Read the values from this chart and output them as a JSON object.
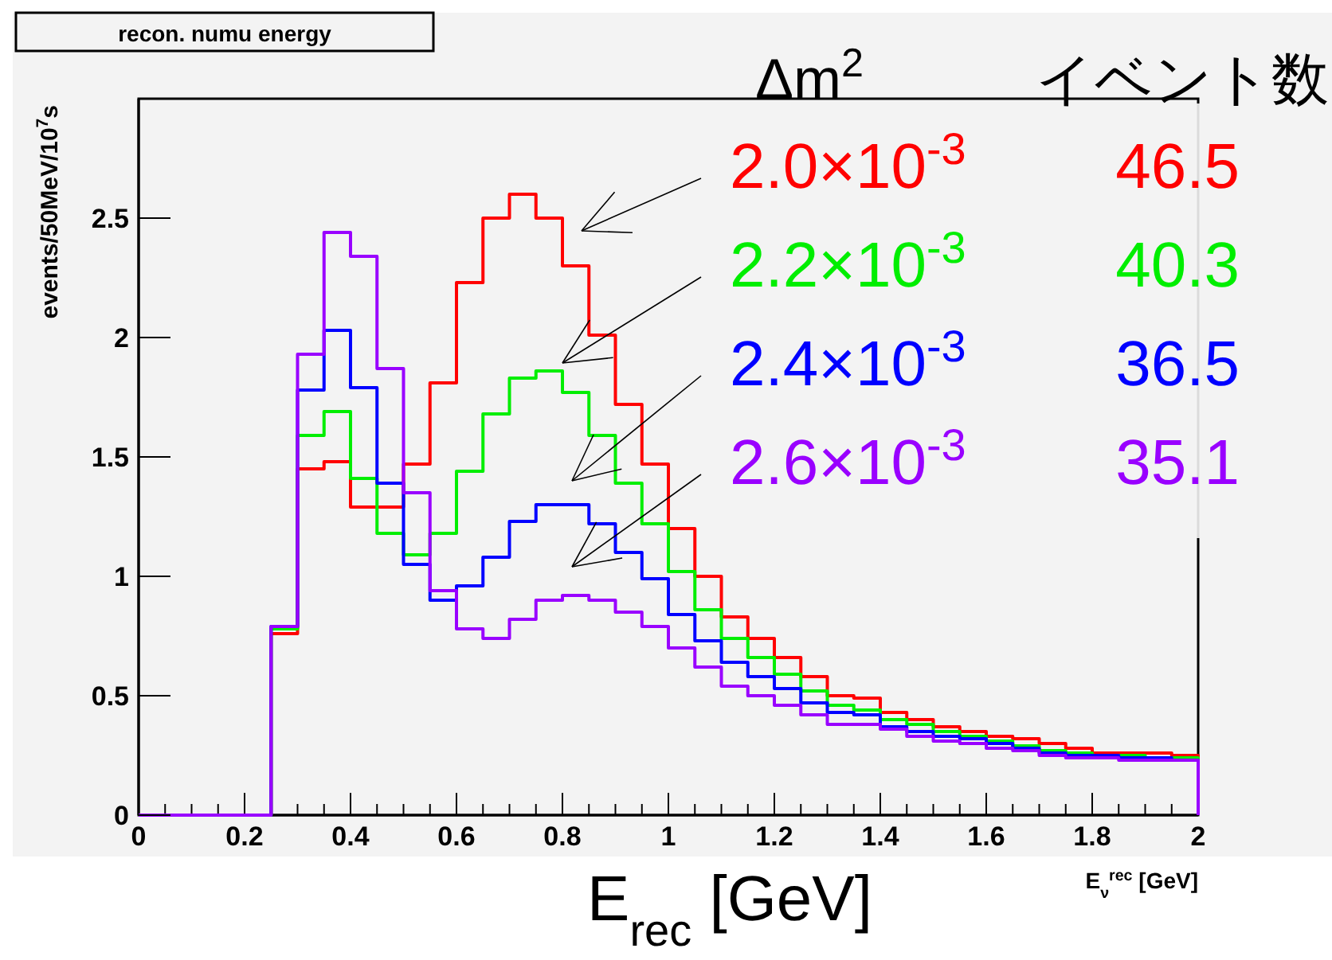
{
  "chart_data": {
    "type": "histogram",
    "title": "recon. numu energy",
    "xlabel": "E$_{ν}$$^{rec}$ [GeV]",
    "ylabel": "events/50MeV/10$^{7}$s",
    "legend_title": "Δm$^{2}$",
    "legend": "top right",
    "annotations": [
      "イベント数",
      "46.5",
      "40.3",
      "36.5",
      "35.1",
      "E$_{rec}$ [GeV]"
    ],
    "bins": [
      0,
      0.05,
      0.1,
      0.15,
      0.2,
      0.25,
      0.3,
      0.35,
      0.4,
      0.45,
      0.5,
      0.55,
      0.6,
      0.65,
      0.7,
      0.75,
      0.8,
      0.85,
      0.9,
      0.95,
      1,
      1.05,
      1.1,
      1.15,
      1.2,
      1.25,
      1.3,
      1.35,
      1.4,
      1.45,
      1.5,
      1.55,
      1.6,
      1.65,
      1.7,
      1.75,
      1.8,
      1.85,
      1.9,
      1.95,
      2
    ],
    "xlim": [
      0,
      2
    ],
    "xticks": [
      0,
      {
        "value": 0.05,
        "label": null
      },
      {
        "value": 0.1,
        "label": null
      },
      {
        "value": 0.15,
        "label": null
      },
      0.2,
      {
        "value": 0.25,
        "label": null
      },
      {
        "value": 0.3,
        "label": null
      },
      {
        "value": 0.35,
        "label": null
      },
      0.4,
      {
        "value": 0.45,
        "label": null
      },
      {
        "value": 0.5,
        "label": null
      },
      {
        "value": 0.55,
        "label": null
      },
      0.6,
      {
        "value": 0.65,
        "label": null
      },
      {
        "value": 0.7,
        "label": null
      },
      {
        "value": 0.75,
        "label": null
      },
      0.8,
      {
        "value": 0.85,
        "label": null
      },
      {
        "value": 0.9,
        "label": null
      },
      {
        "value": 0.95,
        "label": null
      },
      1,
      {
        "value": 1.05,
        "label": null
      },
      {
        "value": 1.1,
        "label": null
      },
      {
        "value": 1.15,
        "label": null
      },
      1.2,
      {
        "value": 1.25,
        "label": null
      },
      {
        "value": 1.3,
        "label": null
      },
      {
        "value": 1.35,
        "label": null
      },
      1.4,
      {
        "value": 1.45,
        "label": null
      },
      {
        "value": 1.5,
        "label": null
      },
      {
        "value": 1.55,
        "label": null
      },
      1.6,
      {
        "value": 1.65,
        "label": null
      },
      {
        "value": 1.7,
        "label": null
      },
      {
        "value": 1.75,
        "label": null
      },
      1.8,
      {
        "value": 1.85,
        "label": null
      },
      {
        "value": 1.9,
        "label": null
      },
      {
        "value": 1.95,
        "label": null
      },
      2
    ],
    "ylim": [
      0,
      3
    ],
    "yticks": [
      0,
      0.5,
      1,
      1.5,
      2,
      2.5
    ],
    "series": [
      {
        "name": "2.0×10$^{-3}$",
        "color": "#ff0000",
        "values": [
          0,
          0,
          0,
          0,
          0,
          0.76,
          1.45,
          1.48,
          1.29,
          1.29,
          1.47,
          1.81,
          2.23,
          2.5,
          2.6,
          2.5,
          2.3,
          2.01,
          1.72,
          1.47,
          1.2,
          1,
          0.83,
          0.74,
          0.66,
          0.58,
          0.5,
          0.49,
          0.43,
          0.4,
          0.37,
          0.35,
          0.33,
          0.32,
          0.3,
          0.28,
          0.26,
          0.26,
          0.26,
          0.25
        ]
      },
      {
        "name": "2.2×10$^{-3}$",
        "color": "#00ee00",
        "values": [
          0,
          0,
          0,
          0,
          0,
          0.78,
          1.59,
          1.69,
          1.41,
          1.18,
          1.09,
          1.18,
          1.44,
          1.68,
          1.83,
          1.86,
          1.77,
          1.59,
          1.39,
          1.22,
          1.02,
          0.86,
          0.74,
          0.66,
          0.59,
          0.52,
          0.46,
          0.44,
          0.4,
          0.38,
          0.35,
          0.33,
          0.31,
          0.29,
          0.27,
          0.26,
          0.25,
          0.25,
          0.24,
          0.24
        ]
      },
      {
        "name": "2.4×10$^{-3}$",
        "color": "#0000ff",
        "values": [
          0,
          0,
          0,
          0,
          0,
          0.79,
          1.78,
          2.03,
          1.79,
          1.39,
          1.05,
          0.9,
          0.96,
          1.08,
          1.23,
          1.3,
          1.3,
          1.22,
          1.1,
          0.99,
          0.84,
          0.73,
          0.64,
          0.58,
          0.53,
          0.47,
          0.43,
          0.42,
          0.37,
          0.35,
          0.33,
          0.32,
          0.3,
          0.28,
          0.26,
          0.25,
          0.25,
          0.24,
          0.24,
          0.23
        ]
      },
      {
        "name": "2.6×10$^{-3}$",
        "color": "#9900ff",
        "values": [
          0,
          0,
          0,
          0,
          0,
          0.79,
          1.93,
          2.44,
          2.34,
          1.87,
          1.35,
          0.94,
          0.78,
          0.74,
          0.82,
          0.9,
          0.92,
          0.9,
          0.85,
          0.79,
          0.7,
          0.62,
          0.54,
          0.5,
          0.46,
          0.42,
          0.38,
          0.38,
          0.36,
          0.33,
          0.31,
          0.3,
          0.28,
          0.27,
          0.25,
          0.24,
          0.24,
          0.23,
          0.23,
          0.23
        ]
      }
    ]
  }
}
